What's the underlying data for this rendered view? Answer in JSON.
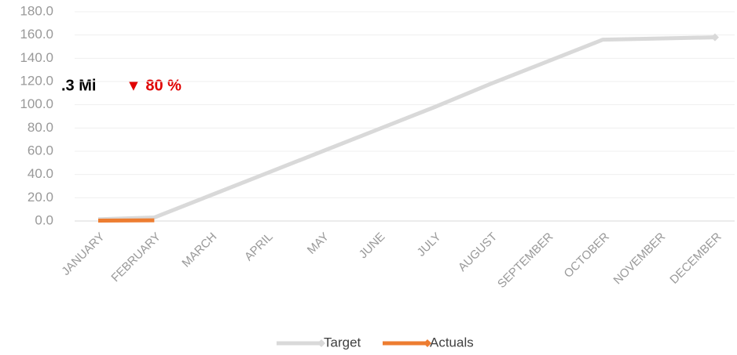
{
  "chart_data": {
    "type": "line",
    "categories": [
      "JANUARY",
      "FEBRUARY",
      "MARCH",
      "APRIL",
      "MAY",
      "JUNE",
      "JULY",
      "AUGUST",
      "SEPTEMBER",
      "OCTOBER",
      "NOVEMBER",
      "DECEMBER"
    ],
    "series": [
      {
        "name": "Target",
        "color": "#d9d9d9",
        "values": [
          1.5,
          3,
          22,
          41,
          60,
          79,
          98,
          118,
          137,
          156,
          157,
          158
        ]
      },
      {
        "name": "Actuals",
        "color": "#ed7d31",
        "values": [
          0.3,
          0.6,
          null,
          null,
          null,
          null,
          null,
          null,
          null,
          null,
          null,
          null
        ]
      }
    ],
    "ylim": [
      0,
      180
    ],
    "yticks": [
      {
        "value": 0,
        "label": "0.0"
      },
      {
        "value": 20,
        "label": "20.0"
      },
      {
        "value": 40,
        "label": "40.0"
      },
      {
        "value": 60,
        "label": "60.0"
      },
      {
        "value": 80,
        "label": "80.0"
      },
      {
        "value": 100,
        "label": "100.0"
      },
      {
        "value": 120,
        "label": "120.0"
      },
      {
        "value": 140,
        "label": "140.0"
      },
      {
        "value": 160,
        "label": "160.0"
      },
      {
        "value": 180,
        "label": "180.0"
      }
    ],
    "grid": true,
    "legend": "bottom",
    "annotations": [
      ".3 Mi",
      "▼ 80 %"
    ]
  }
}
